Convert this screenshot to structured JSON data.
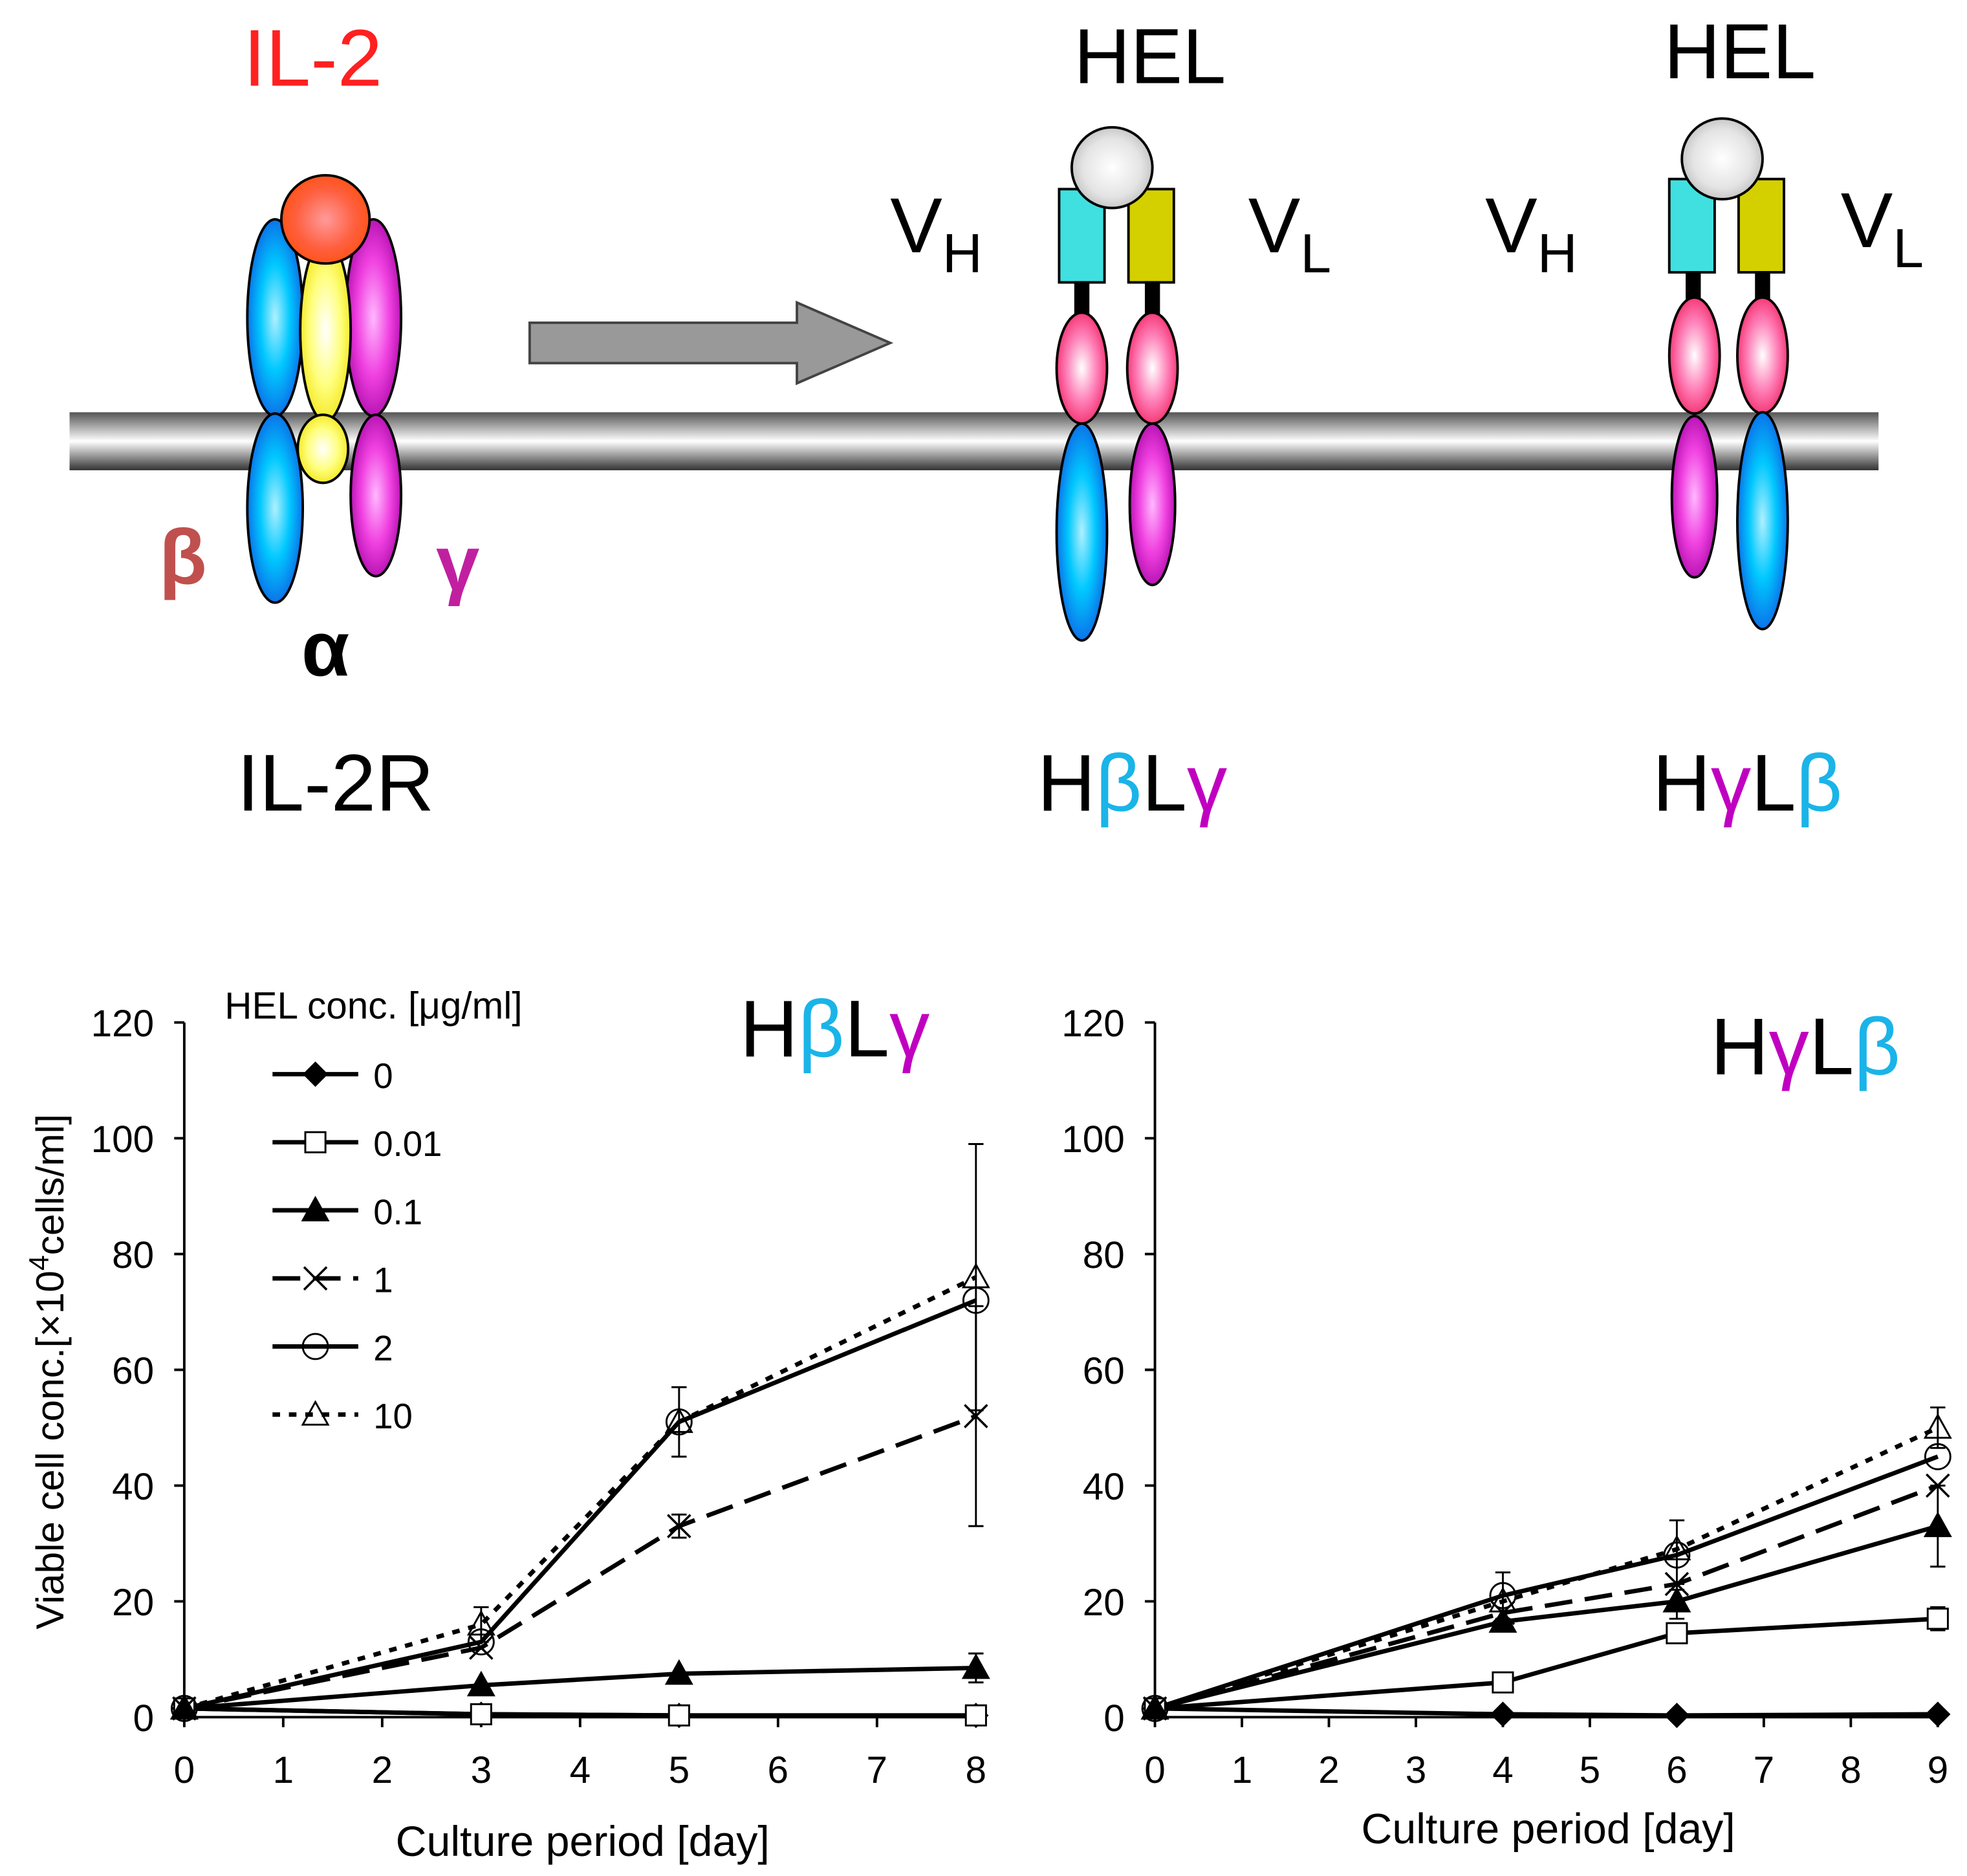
{
  "diagram": {
    "il2": "IL-2",
    "beta": "β",
    "gamma": "γ",
    "alpha": "α",
    "il2r": "IL-2R",
    "hel": "HEL",
    "v": "V",
    "h_sub": "H",
    "l_sub": "L",
    "construct1": {
      "h": "H",
      "c1": "β",
      "l": "L",
      "c2": "γ"
    },
    "construct2": {
      "h": "H",
      "c1": "γ",
      "l": "L",
      "c2": "β"
    }
  },
  "colors": {
    "il2": "#ff2020",
    "beta_label": "#c0504d",
    "gamma_label": "#c020a0",
    "cyan": "#1ab4e8",
    "magenta": "#c000c0"
  },
  "legend": {
    "title": "HEL conc. [μg/ml]",
    "items": [
      "0",
      "0.01",
      "0.1",
      "1",
      "2",
      "10"
    ]
  },
  "axis_labels": {
    "y_main": "Viable cell conc.[×10",
    "y_sup": "4",
    "y_tail": "cells/ml]"
  },
  "chart_data": [
    {
      "type": "line",
      "title": "HβLγ",
      "xlabel": "Culture period [day]",
      "ylabel": "Viable cell conc.[×10^4 cells/ml]",
      "xlim": [
        0,
        8
      ],
      "ylim": [
        0,
        120
      ],
      "x_ticks": [
        0,
        1,
        2,
        3,
        4,
        5,
        6,
        7,
        8
      ],
      "y_ticks": [
        0,
        20,
        40,
        60,
        80,
        100,
        120
      ],
      "x": [
        0,
        3,
        5,
        8
      ],
      "series": [
        {
          "name": "0",
          "marker": "diamond-filled",
          "dash": "solid",
          "values": [
            1.5,
            0.5,
            0.3,
            0.3
          ],
          "err": [
            0,
            0,
            0,
            0
          ]
        },
        {
          "name": "0.01",
          "marker": "square-open",
          "dash": "solid",
          "values": [
            1.5,
            0.5,
            0.3,
            0.3
          ],
          "err": [
            0,
            0,
            0,
            0
          ]
        },
        {
          "name": "0.1",
          "marker": "triangle-filled",
          "dash": "solid",
          "values": [
            1.5,
            5.5,
            7.5,
            8.5
          ],
          "err": [
            0,
            0,
            0,
            2.5
          ]
        },
        {
          "name": "1",
          "marker": "cross",
          "dash": "longdash",
          "values": [
            1.5,
            12,
            33,
            52
          ],
          "err": [
            0,
            0,
            2,
            19
          ]
        },
        {
          "name": "2",
          "marker": "circle-open",
          "dash": "solid",
          "values": [
            1.5,
            13,
            51,
            72
          ],
          "err": [
            0,
            0,
            6,
            0
          ]
        },
        {
          "name": "10",
          "marker": "triangle-open",
          "dash": "dotted",
          "values": [
            1.5,
            16,
            51,
            76
          ],
          "err": [
            0,
            3,
            0,
            23
          ]
        }
      ]
    },
    {
      "type": "line",
      "title": "HγLβ",
      "xlabel": "Culture period [day]",
      "ylabel": "",
      "xlim": [
        0,
        9
      ],
      "ylim": [
        0,
        120
      ],
      "x_ticks": [
        0,
        1,
        2,
        3,
        4,
        5,
        6,
        7,
        8,
        9
      ],
      "y_ticks": [
        0,
        20,
        40,
        60,
        80,
        100,
        120
      ],
      "x": [
        0,
        4,
        6,
        9
      ],
      "series": [
        {
          "name": "0",
          "marker": "diamond-filled",
          "dash": "solid",
          "values": [
            1.5,
            0.5,
            0.3,
            0.5
          ],
          "err": [
            0,
            0,
            0,
            0
          ]
        },
        {
          "name": "0.01",
          "marker": "square-open",
          "dash": "solid",
          "values": [
            1.5,
            6,
            14.5,
            17
          ],
          "err": [
            0,
            0,
            0,
            2
          ]
        },
        {
          "name": "0.1",
          "marker": "triangle-filled",
          "dash": "solid",
          "values": [
            1.5,
            16.5,
            20,
            33
          ],
          "err": [
            0,
            0,
            3,
            7
          ]
        },
        {
          "name": "1",
          "marker": "cross",
          "dash": "longdash",
          "values": [
            1.5,
            18,
            23,
            40
          ],
          "err": [
            0,
            0,
            0,
            0
          ]
        },
        {
          "name": "2",
          "marker": "circle-open",
          "dash": "solid",
          "values": [
            1.5,
            21,
            28,
            45
          ],
          "err": [
            0,
            4,
            6,
            0
          ]
        },
        {
          "name": "10",
          "marker": "triangle-open",
          "dash": "dotted",
          "values": [
            1.5,
            20,
            29,
            50
          ],
          "err": [
            0,
            0,
            0,
            3.5
          ]
        }
      ]
    }
  ]
}
